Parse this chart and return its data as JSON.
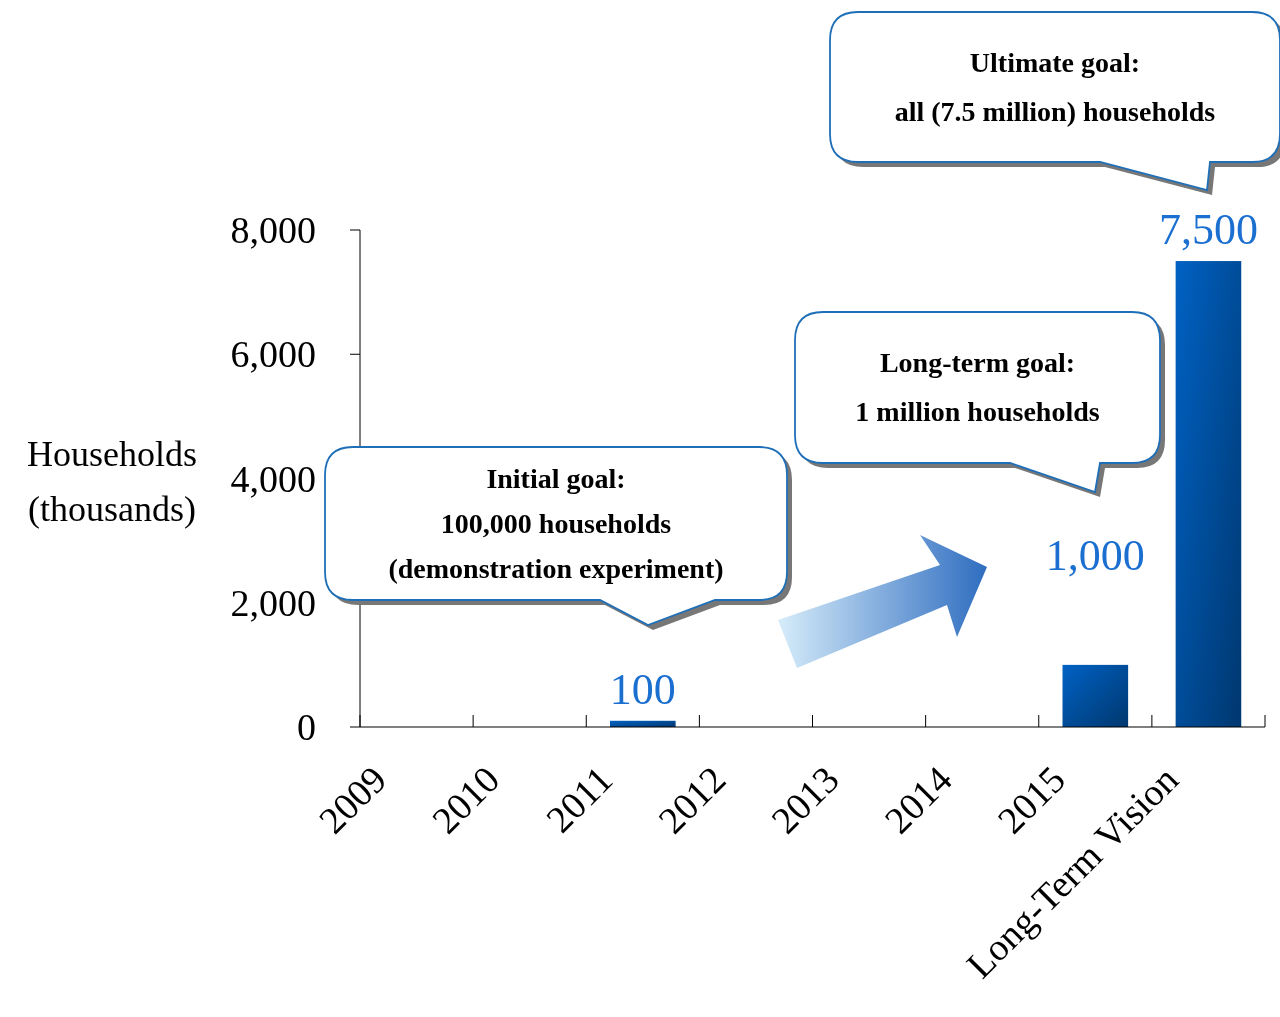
{
  "chart_data": {
    "type": "bar",
    "categories": [
      "2009",
      "2010",
      "2011",
      "2012",
      "2013",
      "2014",
      "2015",
      "Long-Term Vision"
    ],
    "values": [
      null,
      null,
      100,
      null,
      null,
      null,
      1000,
      7500
    ],
    "value_labels": [
      null,
      null,
      "100",
      null,
      null,
      null,
      "1,000",
      "7,500"
    ],
    "color": "#0062c4",
    "ylabel": "Households (thousands)",
    "ylim": [
      0,
      8000
    ],
    "yticks": [
      {
        "value": 0,
        "label": "0"
      },
      {
        "value": 2000,
        "label": "2,000"
      },
      {
        "value": 4000,
        "label": "4,000"
      },
      {
        "value": 6000,
        "label": "6,000"
      },
      {
        "value": 8000,
        "label": "8,000"
      }
    ],
    "grid": false,
    "annotations": [
      "Initial goal:\n100,000 households\n(demonstration experiment)",
      "Long-term goal:\n1 million households",
      "Ultimate goal:\nall (7.5 million) households"
    ]
  }
}
